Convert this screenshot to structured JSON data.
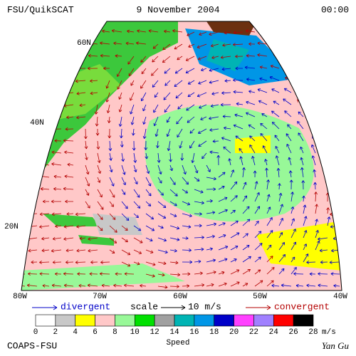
{
  "header": {
    "left": "FSU/QuikSCAT",
    "center": "9 November 2004",
    "right": "00:00"
  },
  "lat_labels": [
    "60N",
    "40N",
    "20N"
  ],
  "lon_labels": [
    "80W",
    "70W",
    "60W",
    "50W",
    "40W"
  ],
  "legend": {
    "divergent": "divergent",
    "scale": "scale",
    "scale_value": "10 m/s",
    "convergent": "convergent"
  },
  "colorbar": {
    "ticks": [
      0,
      2,
      4,
      6,
      8,
      10,
      12,
      14,
      16,
      18,
      20,
      22,
      24,
      26,
      28
    ],
    "unit": "m/s",
    "title": "Speed",
    "colors": [
      "#ffffff",
      "#c8c8c8",
      "#ffff00",
      "#ffc8c8",
      "#98f898",
      "#00e000",
      "#a0a0a0",
      "#00b4b4",
      "#0096e6",
      "#0000c8",
      "#ff40ff",
      "#a080ff",
      "#ff0000",
      "#000000"
    ]
  },
  "footer": {
    "left": "COAPS-FSU",
    "right": "Yan Gu"
  }
}
